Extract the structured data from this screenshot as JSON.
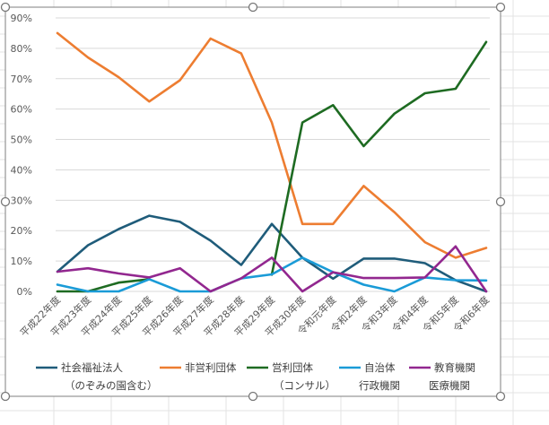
{
  "colors": {
    "shakai": "#1f5c7a",
    "hieiri": "#ed7d31",
    "eiri": "#1e6b22",
    "jichitai": "#1a9bd7",
    "kyoiku": "#92278f",
    "grid": "#d9d9d9",
    "sheet_grid": "#e3e3e3",
    "frame": "#7f7f7f"
  },
  "chart_data": {
    "type": "line",
    "title": "",
    "xlabel": "",
    "ylabel": "",
    "ylim": [
      0,
      0.9
    ],
    "yticks": [
      "0%",
      "10%",
      "20%",
      "30%",
      "40%",
      "50%",
      "60%",
      "70%",
      "80%",
      "90%"
    ],
    "grid": true,
    "legend_position": "bottom",
    "categories": [
      "平成22年度",
      "平成23年度",
      "平成24年度",
      "平成25年度",
      "平成26年度",
      "平成27年度",
      "平成28年度",
      "平成29年度",
      "平成30年度",
      "令和元年度",
      "令和2年度",
      "令和3年度",
      "令和4年度",
      "令和5年度",
      "令和6年度"
    ],
    "series": [
      {
        "key": "shakai",
        "name": "社会福祉法人",
        "sub": "（のぞみの園含む）",
        "values": [
          0.065,
          0.152,
          0.205,
          0.249,
          0.229,
          0.167,
          0.087,
          0.222,
          0.111,
          0.042,
          0.108,
          0.108,
          0.093,
          0.037,
          0.0
        ]
      },
      {
        "key": "hieiri",
        "name": "非営利団体",
        "sub": "",
        "values": [
          0.85,
          0.77,
          0.705,
          0.625,
          0.695,
          0.832,
          0.783,
          0.556,
          0.222,
          0.222,
          0.347,
          0.261,
          0.162,
          0.111,
          0.143
        ]
      },
      {
        "key": "eiri",
        "name": "営利団体",
        "sub": "（コンサル）",
        "values": [
          0.0,
          0.0,
          0.029,
          0.04,
          null,
          null,
          null,
          0.055,
          0.556,
          0.613,
          0.478,
          0.585,
          0.652,
          0.667,
          0.821
        ]
      },
      {
        "key": "jichitai",
        "name": "自治体",
        "sub": "行政機関",
        "values": [
          0.022,
          0.0,
          0.0,
          0.04,
          0.0,
          0.0,
          0.043,
          0.056,
          0.111,
          0.063,
          0.022,
          0.0,
          0.046,
          0.037,
          0.036
        ]
      },
      {
        "key": "kyoiku",
        "name": "教育機関",
        "sub": "医療機関",
        "values": [
          0.065,
          0.076,
          0.059,
          0.046,
          0.076,
          0.0,
          0.043,
          0.111,
          0.0,
          0.063,
          0.044,
          0.044,
          0.046,
          0.148,
          0.0
        ]
      }
    ]
  }
}
